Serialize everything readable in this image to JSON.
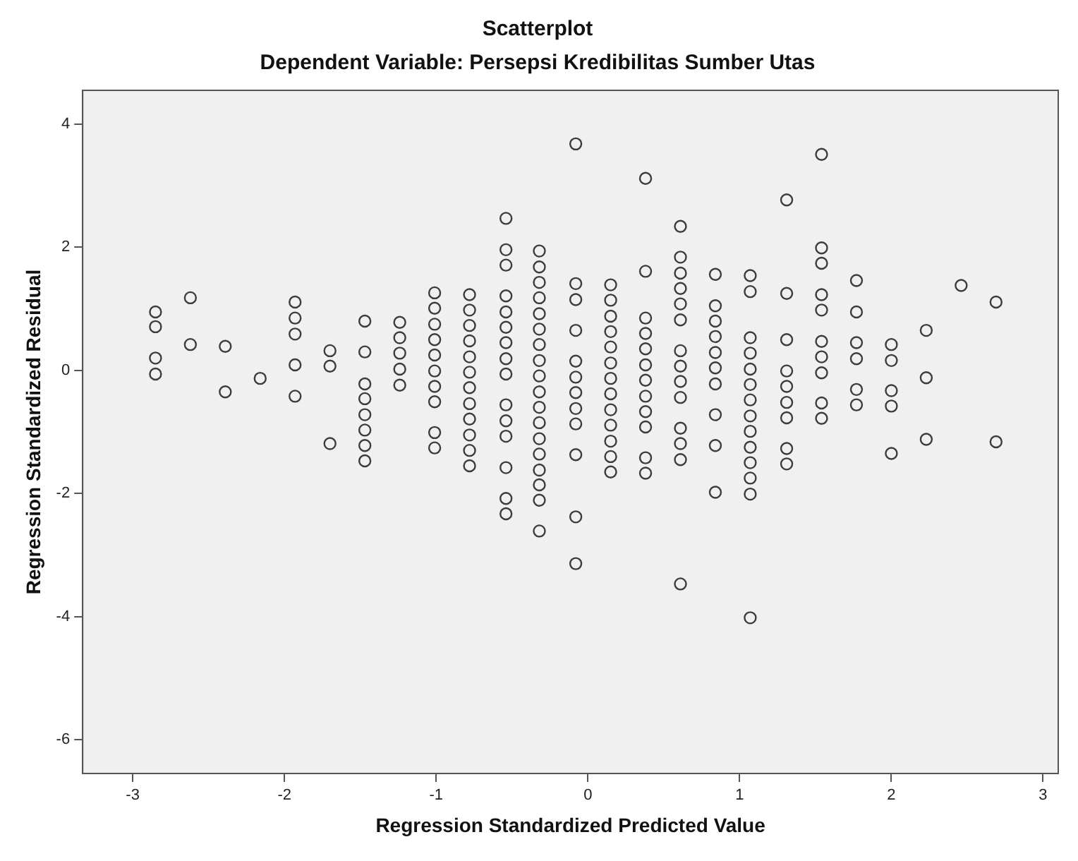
{
  "chart_data": {
    "type": "scatter",
    "title": "Scatterplot",
    "subtitle": "Dependent Variable: Persepsi Kredibilitas Sumber Utas",
    "xlabel": "Regression Standardized Predicted Value",
    "ylabel": "Regression Standardized Residual",
    "x": [
      -2.85,
      -2.85,
      -2.85,
      -2.85,
      -2.62,
      -2.62,
      -2.39,
      -2.39,
      -2.16,
      -1.93,
      -1.93,
      -1.93,
      -1.93,
      -1.93,
      -1.7,
      -1.7,
      -1.7,
      -1.47,
      -1.47,
      -1.47,
      -1.47,
      -1.47,
      -1.47,
      -1.47,
      -1.47,
      -1.24,
      -1.24,
      -1.24,
      -1.24,
      -1.24,
      -1.01,
      -1.01,
      -1.01,
      -1.01,
      -1.01,
      -1.01,
      -1.01,
      -1.01,
      -1.01,
      -1.01,
      -0.78,
      -0.78,
      -0.78,
      -0.78,
      -0.78,
      -0.78,
      -0.78,
      -0.78,
      -0.78,
      -0.78,
      -0.78,
      -0.78,
      -0.54,
      -0.54,
      -0.54,
      -0.54,
      -0.54,
      -0.54,
      -0.54,
      -0.54,
      -0.54,
      -0.54,
      -0.54,
      -0.54,
      -0.54,
      -0.54,
      -0.54,
      -0.32,
      -0.32,
      -0.32,
      -0.32,
      -0.32,
      -0.32,
      -0.32,
      -0.32,
      -0.32,
      -0.32,
      -0.32,
      -0.32,
      -0.32,
      -0.32,
      -0.32,
      -0.32,
      -0.32,
      -0.32,
      -0.08,
      -0.08,
      -0.08,
      -0.08,
      -0.08,
      -0.08,
      -0.08,
      -0.08,
      -0.08,
      -0.08,
      -0.08,
      -0.08,
      0.15,
      0.15,
      0.15,
      0.15,
      0.15,
      0.15,
      0.15,
      0.15,
      0.15,
      0.15,
      0.15,
      0.15,
      0.15,
      0.38,
      0.38,
      0.38,
      0.38,
      0.38,
      0.38,
      0.38,
      0.38,
      0.38,
      0.38,
      0.38,
      0.38,
      0.61,
      0.61,
      0.61,
      0.61,
      0.61,
      0.61,
      0.61,
      0.61,
      0.61,
      0.61,
      0.61,
      0.61,
      0.61,
      0.61,
      0.84,
      0.84,
      0.84,
      0.84,
      0.84,
      0.84,
      0.84,
      0.84,
      0.84,
      0.84,
      1.07,
      1.07,
      1.07,
      1.07,
      1.07,
      1.07,
      1.07,
      1.07,
      1.07,
      1.07,
      1.07,
      1.07,
      1.07,
      1.07,
      1.31,
      1.31,
      1.31,
      1.31,
      1.31,
      1.31,
      1.31,
      1.31,
      1.31,
      1.54,
      1.54,
      1.54,
      1.54,
      1.54,
      1.54,
      1.54,
      1.54,
      1.54,
      1.54,
      1.77,
      1.77,
      1.77,
      1.77,
      1.77,
      1.77,
      2.0,
      2.0,
      2.0,
      2.0,
      2.0,
      2.23,
      2.23,
      2.23,
      2.46,
      2.69,
      2.69
    ],
    "values": [
      0.95,
      0.71,
      0.2,
      -0.06,
      1.18,
      0.42,
      0.39,
      -0.35,
      -0.13,
      1.11,
      0.85,
      0.59,
      0.09,
      -0.42,
      0.32,
      0.07,
      -1.19,
      0.8,
      0.3,
      -0.22,
      -0.46,
      -0.72,
      -0.97,
      -1.22,
      -1.47,
      0.78,
      0.53,
      0.28,
      0.02,
      -0.24,
      1.26,
      1.01,
      0.75,
      0.5,
      0.25,
      -0.01,
      -0.26,
      -0.51,
      -1.01,
      -1.26,
      1.23,
      0.98,
      0.73,
      0.48,
      0.22,
      -0.03,
      -0.28,
      -0.54,
      -0.79,
      -1.05,
      -1.3,
      -1.55,
      2.47,
      1.96,
      1.71,
      1.21,
      0.95,
      0.7,
      0.45,
      0.19,
      -0.06,
      -0.56,
      -0.82,
      -1.07,
      -1.58,
      -2.08,
      -2.33,
      1.94,
      1.68,
      1.43,
      1.18,
      0.92,
      0.67,
      0.42,
      0.16,
      -0.09,
      -0.35,
      -0.6,
      -0.85,
      -1.11,
      -1.36,
      -1.62,
      -1.86,
      -2.11,
      -2.61,
      3.68,
      1.41,
      1.15,
      0.65,
      0.15,
      -0.11,
      -0.36,
      -0.62,
      -0.87,
      -1.37,
      -2.38,
      -3.14,
      1.39,
      1.14,
      0.88,
      0.63,
      0.38,
      0.12,
      -0.13,
      -0.38,
      -0.64,
      -0.89,
      -1.15,
      -1.4,
      -1.65,
      3.12,
      1.61,
      0.85,
      0.6,
      0.35,
      0.09,
      -0.16,
      -0.42,
      -0.67,
      -0.92,
      -1.42,
      -1.67,
      2.34,
      1.84,
      1.58,
      1.33,
      1.08,
      0.82,
      0.32,
      0.07,
      -0.18,
      -0.44,
      -0.94,
      -1.19,
      -1.45,
      -3.47,
      1.56,
      1.05,
      0.8,
      0.55,
      0.29,
      0.04,
      -0.22,
      -0.72,
      -1.22,
      -1.98,
      1.54,
      1.28,
      0.53,
      0.28,
      0.02,
      -0.23,
      -0.48,
      -0.74,
      -0.99,
      -1.25,
      -1.5,
      -1.75,
      -2.01,
      -4.02,
      2.77,
      1.25,
      0.5,
      -0.01,
      -0.26,
      -0.52,
      -0.77,
      -1.27,
      -1.52,
      3.51,
      1.99,
      1.74,
      1.23,
      0.98,
      0.47,
      0.22,
      -0.04,
      -0.53,
      -0.78,
      1.46,
      0.95,
      0.45,
      0.19,
      -0.31,
      -0.56,
      0.42,
      0.16,
      -0.33,
      -0.58,
      -1.35,
      0.65,
      -0.12,
      -1.12,
      1.38,
      1.11,
      -1.16
    ],
    "color": "#3c3c3c",
    "marker": "circle",
    "xlim": [
      -3.33,
      3.1
    ],
    "ylim": [
      -6.55,
      4.55
    ],
    "xticks": [
      -3,
      -2,
      -1,
      0,
      1,
      2,
      3
    ],
    "yticks": [
      -6,
      -4,
      -2,
      0,
      2,
      4
    ]
  }
}
